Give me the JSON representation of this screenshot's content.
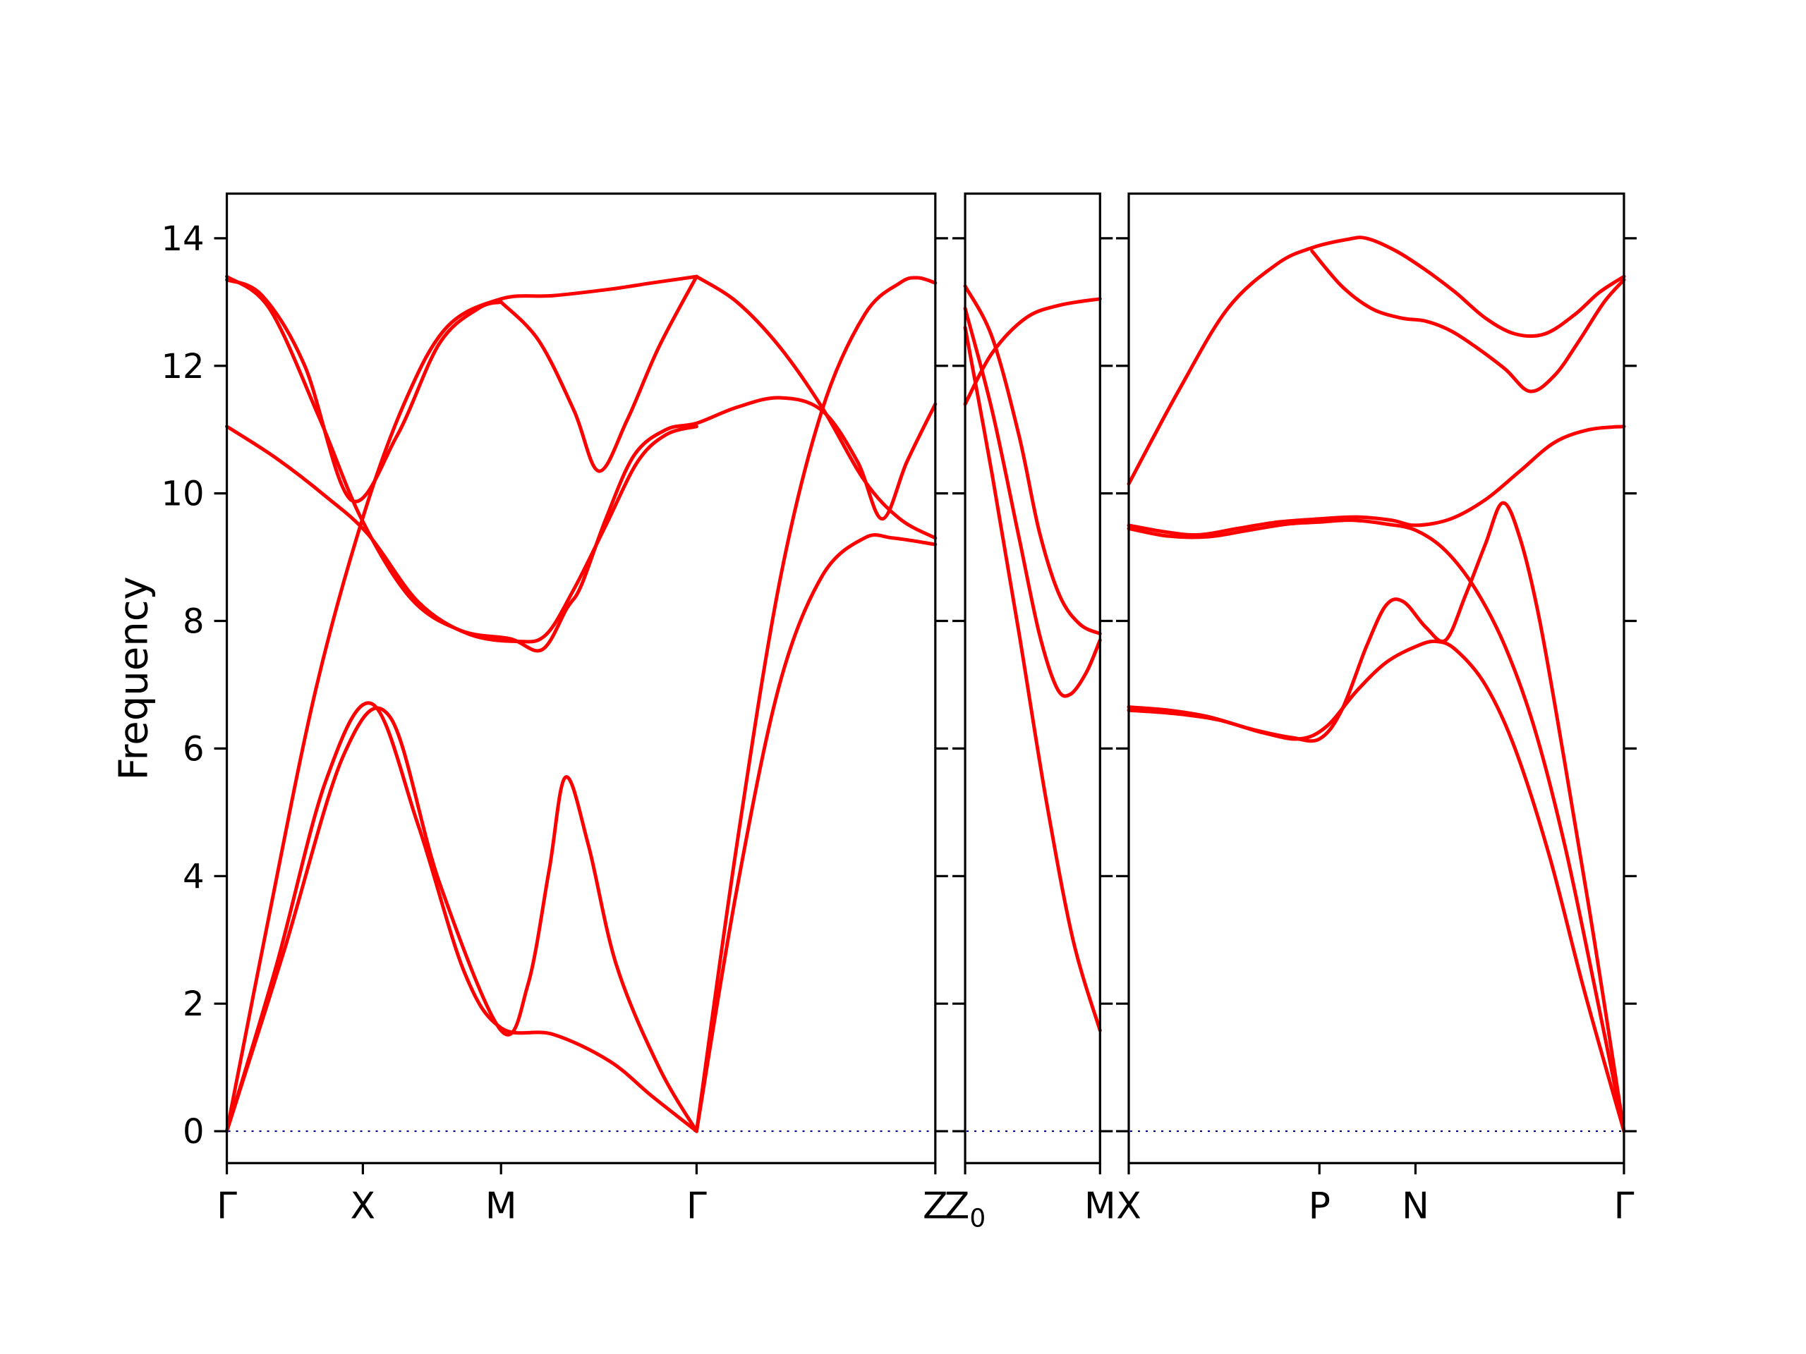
{
  "figure": {
    "background": "#ffffff"
  },
  "chart_data": {
    "type": "line",
    "title": "",
    "ylabel": "Frequency",
    "ylim": [
      -0.5,
      14.7
    ],
    "yticks": [
      0,
      2,
      4,
      6,
      8,
      10,
      12,
      14
    ],
    "series_color": "#ff0000",
    "frame_color": "#000000",
    "zero_line": {
      "freq": 0,
      "color": "#00008b",
      "style": "dotted"
    },
    "plot_area_y_span": [
      0.143,
      0.859
    ],
    "panels": [
      {
        "name": "G-X-M-G-Z",
        "x_span": [
          0.1256,
          0.5179
        ],
        "kpoints": [
          {
            "label": "Γ",
            "pos": 0.0
          },
          {
            "label": "X",
            "pos": 0.192
          },
          {
            "label": "M",
            "pos": 0.387
          },
          {
            "label": "Γ",
            "pos": 0.663
          },
          {
            "label": "Z",
            "pos": 1.0
          }
        ],
        "bands": [
          [
            [
              0,
              0
            ],
            [
              0.07,
              2.6
            ],
            [
              0.14,
              5.5
            ],
            [
              0.205,
              6.7
            ],
            [
              0.27,
              4.8
            ],
            [
              0.335,
              2.5
            ],
            [
              0.387,
              1.62
            ],
            [
              0.46,
              1.52
            ],
            [
              0.54,
              1.1
            ],
            [
              0.6,
              0.55
            ],
            [
              0.663,
              0
            ]
          ],
          [
            [
              0,
              0
            ],
            [
              0.08,
              2.8
            ],
            [
              0.165,
              5.9
            ],
            [
              0.23,
              6.5
            ],
            [
              0.3,
              3.9
            ],
            [
              0.387,
              1.58
            ],
            [
              0.425,
              2.3
            ],
            [
              0.455,
              4.1
            ],
            [
              0.478,
              5.55
            ],
            [
              0.51,
              4.5
            ],
            [
              0.55,
              2.6
            ],
            [
              0.61,
              1.0
            ],
            [
              0.663,
              0
            ]
          ],
          [
            [
              0,
              0
            ],
            [
              0.06,
              3.4
            ],
            [
              0.125,
              6.9
            ],
            [
              0.19,
              9.55
            ],
            [
              0.25,
              11.4
            ],
            [
              0.31,
              12.6
            ],
            [
              0.387,
              13.05
            ],
            [
              0.46,
              13.1
            ],
            [
              0.54,
              13.2
            ],
            [
              0.6,
              13.3
            ],
            [
              0.663,
              13.4
            ]
          ],
          [
            [
              0,
              13.35
            ],
            [
              0.05,
              13.1
            ],
            [
              0.11,
              12.0
            ],
            [
              0.175,
              9.9
            ],
            [
              0.24,
              10.9
            ],
            [
              0.3,
              12.35
            ],
            [
              0.355,
              12.9
            ],
            [
              0.387,
              13.0
            ]
          ],
          [
            [
              0,
              13.4
            ],
            [
              0.06,
              12.9
            ],
            [
              0.13,
              11.2
            ],
            [
              0.19,
              9.6
            ],
            [
              0.26,
              8.35
            ],
            [
              0.33,
              7.85
            ],
            [
              0.4,
              7.72
            ],
            [
              0.445,
              7.55
            ],
            [
              0.48,
              8.2
            ],
            [
              0.5,
              8.55
            ],
            [
              0.535,
              9.6
            ],
            [
              0.575,
              10.6
            ],
            [
              0.62,
              11.0
            ],
            [
              0.663,
              11.1
            ],
            [
              0.72,
              11.35
            ],
            [
              0.78,
              11.5
            ],
            [
              0.84,
              11.3
            ],
            [
              0.89,
              10.5
            ],
            [
              0.925,
              9.6
            ],
            [
              0.96,
              10.5
            ],
            [
              1.0,
              11.4
            ]
          ],
          [
            [
              0,
              11.05
            ],
            [
              0.07,
              10.55
            ],
            [
              0.14,
              9.95
            ],
            [
              0.2,
              9.35
            ],
            [
              0.27,
              8.3
            ],
            [
              0.34,
              7.8
            ],
            [
              0.41,
              7.68
            ],
            [
              0.45,
              7.78
            ],
            [
              0.49,
              8.5
            ],
            [
              0.535,
              9.5
            ],
            [
              0.58,
              10.5
            ],
            [
              0.62,
              10.92
            ],
            [
              0.663,
              11.05
            ]
          ],
          [
            [
              0.387,
              13.0
            ],
            [
              0.44,
              12.4
            ],
            [
              0.49,
              11.3
            ],
            [
              0.525,
              10.35
            ],
            [
              0.565,
              11.15
            ],
            [
              0.61,
              12.3
            ],
            [
              0.663,
              13.4
            ]
          ],
          [
            [
              0.663,
              0
            ],
            [
              0.72,
              4.5
            ],
            [
              0.78,
              8.6
            ],
            [
              0.84,
              11.3
            ],
            [
              0.9,
              12.8
            ],
            [
              0.95,
              13.3
            ],
            [
              0.975,
              13.38
            ],
            [
              1.0,
              13.3
            ]
          ],
          [
            [
              0.663,
              0
            ],
            [
              0.72,
              3.8
            ],
            [
              0.78,
              7.0
            ],
            [
              0.84,
              8.7
            ],
            [
              0.9,
              9.3
            ],
            [
              0.94,
              9.3
            ],
            [
              1.0,
              9.2
            ]
          ],
          [
            [
              0.663,
              13.4
            ],
            [
              0.72,
              13.0
            ],
            [
              0.78,
              12.3
            ],
            [
              0.84,
              11.35
            ],
            [
              0.9,
              10.2
            ],
            [
              0.95,
              9.6
            ],
            [
              1.0,
              9.3
            ]
          ]
        ]
      },
      {
        "name": "Z0-M",
        "x_span": [
          0.5344,
          0.6091
        ],
        "kpoints": [
          {
            "label": "Z",
            "sub": "0",
            "pos": 0.0
          },
          {
            "label": "M",
            "pos": 1.0
          }
        ],
        "bands": [
          [
            [
              0,
              11.4
            ],
            [
              0.2,
              12.2
            ],
            [
              0.45,
              12.75
            ],
            [
              0.7,
              12.95
            ],
            [
              1.0,
              13.05
            ]
          ],
          [
            [
              0,
              13.25
            ],
            [
              0.2,
              12.45
            ],
            [
              0.4,
              10.9
            ],
            [
              0.55,
              9.4
            ],
            [
              0.7,
              8.4
            ],
            [
              0.85,
              7.95
            ],
            [
              1.0,
              7.8
            ]
          ],
          [
            [
              0,
              12.9
            ],
            [
              0.2,
              11.3
            ],
            [
              0.4,
              9.3
            ],
            [
              0.55,
              7.8
            ],
            [
              0.68,
              6.95
            ],
            [
              0.78,
              6.85
            ],
            [
              0.9,
              7.2
            ],
            [
              1.0,
              7.7
            ]
          ],
          [
            [
              0,
              12.6
            ],
            [
              0.2,
              10.3
            ],
            [
              0.4,
              7.8
            ],
            [
              0.6,
              5.2
            ],
            [
              0.8,
              3.0
            ],
            [
              1.0,
              1.58
            ]
          ]
        ]
      },
      {
        "name": "X-P-N-G",
        "x_span": [
          0.625,
          0.8992
        ],
        "kpoints": [
          {
            "label": "X",
            "pos": 0.0
          },
          {
            "label": "P",
            "pos": 0.385
          },
          {
            "label": "N",
            "pos": 0.579
          },
          {
            "label": "Γ",
            "pos": 1.0
          }
        ],
        "bands": [
          [
            [
              0,
              10.15
            ],
            [
              0.1,
              11.6
            ],
            [
              0.2,
              12.9
            ],
            [
              0.3,
              13.6
            ],
            [
              0.37,
              13.85
            ],
            [
              0.44,
              13.98
            ],
            [
              0.48,
              14.0
            ],
            [
              0.54,
              13.8
            ],
            [
              0.6,
              13.5
            ],
            [
              0.66,
              13.15
            ],
            [
              0.72,
              12.75
            ],
            [
              0.78,
              12.5
            ],
            [
              0.84,
              12.5
            ],
            [
              0.9,
              12.8
            ],
            [
              0.95,
              13.15
            ],
            [
              1.0,
              13.4
            ]
          ],
          [
            [
              0.37,
              13.8
            ],
            [
              0.43,
              13.25
            ],
            [
              0.49,
              12.9
            ],
            [
              0.55,
              12.75
            ],
            [
              0.6,
              12.7
            ],
            [
              0.65,
              12.55
            ],
            [
              0.7,
              12.3
            ],
            [
              0.76,
              11.95
            ],
            [
              0.81,
              11.6
            ],
            [
              0.86,
              11.85
            ],
            [
              0.91,
              12.4
            ],
            [
              0.96,
              13.0
            ],
            [
              1.0,
              13.35
            ]
          ],
          [
            [
              0,
              9.5
            ],
            [
              0.07,
              9.4
            ],
            [
              0.14,
              9.35
            ],
            [
              0.22,
              9.45
            ],
            [
              0.3,
              9.55
            ],
            [
              0.385,
              9.6
            ],
            [
              0.46,
              9.63
            ],
            [
              0.53,
              9.58
            ],
            [
              0.58,
              9.5
            ],
            [
              0.65,
              9.6
            ],
            [
              0.72,
              9.9
            ],
            [
              0.79,
              10.35
            ],
            [
              0.86,
              10.8
            ],
            [
              0.93,
              11.0
            ],
            [
              1.0,
              11.05
            ]
          ],
          [
            [
              0,
              9.45
            ],
            [
              0.08,
              9.33
            ],
            [
              0.16,
              9.32
            ],
            [
              0.24,
              9.42
            ],
            [
              0.32,
              9.52
            ],
            [
              0.385,
              9.55
            ],
            [
              0.45,
              9.58
            ],
            [
              0.52,
              9.52
            ],
            [
              0.58,
              9.42
            ],
            [
              0.64,
              9.1
            ],
            [
              0.7,
              8.5
            ],
            [
              0.76,
              7.6
            ],
            [
              0.82,
              6.3
            ],
            [
              0.88,
              4.5
            ],
            [
              0.94,
              2.3
            ],
            [
              1.0,
              0
            ]
          ],
          [
            [
              0,
              6.65
            ],
            [
              0.08,
              6.6
            ],
            [
              0.16,
              6.5
            ],
            [
              0.25,
              6.3
            ],
            [
              0.33,
              6.17
            ],
            [
              0.385,
              6.15
            ],
            [
              0.43,
              6.6
            ],
            [
              0.48,
              7.6
            ],
            [
              0.52,
              8.25
            ],
            [
              0.555,
              8.3
            ],
            [
              0.6,
              7.9
            ],
            [
              0.64,
              7.7
            ],
            [
              0.68,
              8.4
            ],
            [
              0.72,
              9.2
            ],
            [
              0.755,
              9.85
            ],
            [
              0.79,
              9.3
            ],
            [
              0.83,
              8.0
            ],
            [
              0.88,
              5.8
            ],
            [
              0.94,
              3.0
            ],
            [
              1.0,
              0
            ]
          ],
          [
            [
              0,
              6.6
            ],
            [
              0.09,
              6.55
            ],
            [
              0.18,
              6.45
            ],
            [
              0.27,
              6.25
            ],
            [
              0.345,
              6.15
            ],
            [
              0.4,
              6.35
            ],
            [
              0.46,
              6.9
            ],
            [
              0.52,
              7.35
            ],
            [
              0.58,
              7.6
            ],
            [
              0.62,
              7.68
            ],
            [
              0.66,
              7.55
            ],
            [
              0.72,
              7.0
            ],
            [
              0.78,
              6.0
            ],
            [
              0.85,
              4.3
            ],
            [
              0.92,
              2.2
            ],
            [
              1.0,
              0
            ]
          ]
        ]
      }
    ]
  }
}
